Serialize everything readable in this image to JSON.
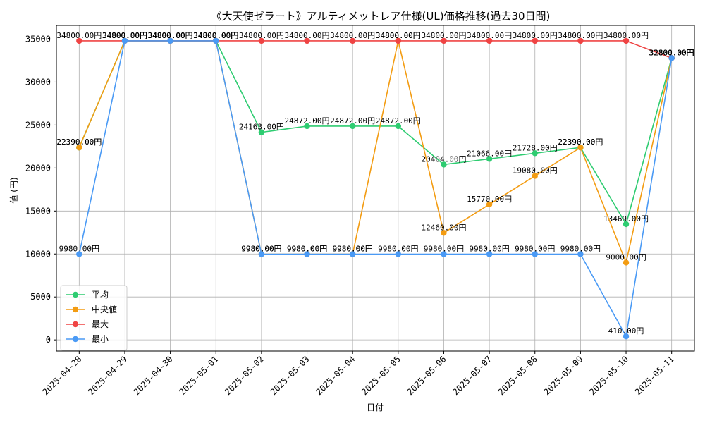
{
  "chart_data": {
    "type": "line",
    "title": "《大天使ゼラート》アルティメットレア仕様(UL)価格推移(過去30日間)",
    "xlabel": "日付",
    "ylabel": "値 (円)",
    "ylim": [
      -1300,
      36600
    ],
    "yticks": [
      0,
      5000,
      10000,
      15000,
      20000,
      25000,
      30000,
      35000
    ],
    "grid": true,
    "legend_position": "lower-left",
    "categories": [
      "2025-04-28",
      "2025-04-29",
      "2025-04-30",
      "2025-05-01",
      "2025-05-02",
      "2025-05-03",
      "2025-05-04",
      "2025-05-05",
      "2025-05-06",
      "2025-05-07",
      "2025-05-08",
      "2025-05-09",
      "2025-05-10",
      "2025-05-11"
    ],
    "series": [
      {
        "name": "平均",
        "color": "#2ecc71",
        "values": [
          22390,
          34800,
          34800,
          34800,
          24163,
          24872,
          24872,
          24872,
          20404,
          21066,
          21728,
          22390,
          13469,
          32800
        ]
      },
      {
        "name": "中央値",
        "color": "#f39c12",
        "values": [
          22390,
          34800,
          34800,
          34800,
          9980,
          9980,
          9980,
          34800,
          12460,
          15770,
          19080,
          22390,
          9000,
          32800
        ]
      },
      {
        "name": "最大",
        "color": "#ef4444",
        "values": [
          34800,
          34800,
          34800,
          34800,
          34800,
          34800,
          34800,
          34800,
          34800,
          34800,
          34800,
          34800,
          34800,
          32800
        ]
      },
      {
        "name": "最小",
        "color": "#4a9af5",
        "values": [
          9980,
          34800,
          34800,
          34800,
          9980,
          9980,
          9980,
          9980,
          9980,
          9980,
          9980,
          9980,
          410,
          32800
        ]
      }
    ],
    "label_suffix": ".00円"
  }
}
